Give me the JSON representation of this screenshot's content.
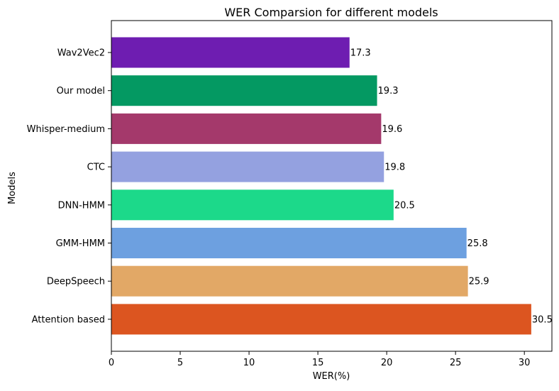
{
  "chart_data": {
    "type": "bar",
    "orientation": "horizontal",
    "title": "WER Comparsion for different models",
    "xlabel": "WER(%)",
    "ylabel": "Models",
    "xlim": [
      0,
      32
    ],
    "xticks": [
      0,
      5,
      10,
      15,
      20,
      25,
      30
    ],
    "grid": false,
    "categories": [
      "Attention based",
      "DeepSpeech",
      "GMM-HMM",
      "DNN-HMM",
      "CTC",
      "Whisper-medium",
      "Our model",
      "Wav2Vec2"
    ],
    "values": [
      30.5,
      25.9,
      25.8,
      20.5,
      19.8,
      19.6,
      19.3,
      17.3
    ],
    "value_labels": [
      "30.5",
      "25.9",
      "25.8",
      "20.5",
      "19.8",
      "19.6",
      "19.3",
      "17.3"
    ],
    "colors": [
      "#dc5520",
      "#e2a866",
      "#6da0e0",
      "#1cd98a",
      "#94a1e0",
      "#a4396b",
      "#049962",
      "#6e1db1"
    ]
  }
}
